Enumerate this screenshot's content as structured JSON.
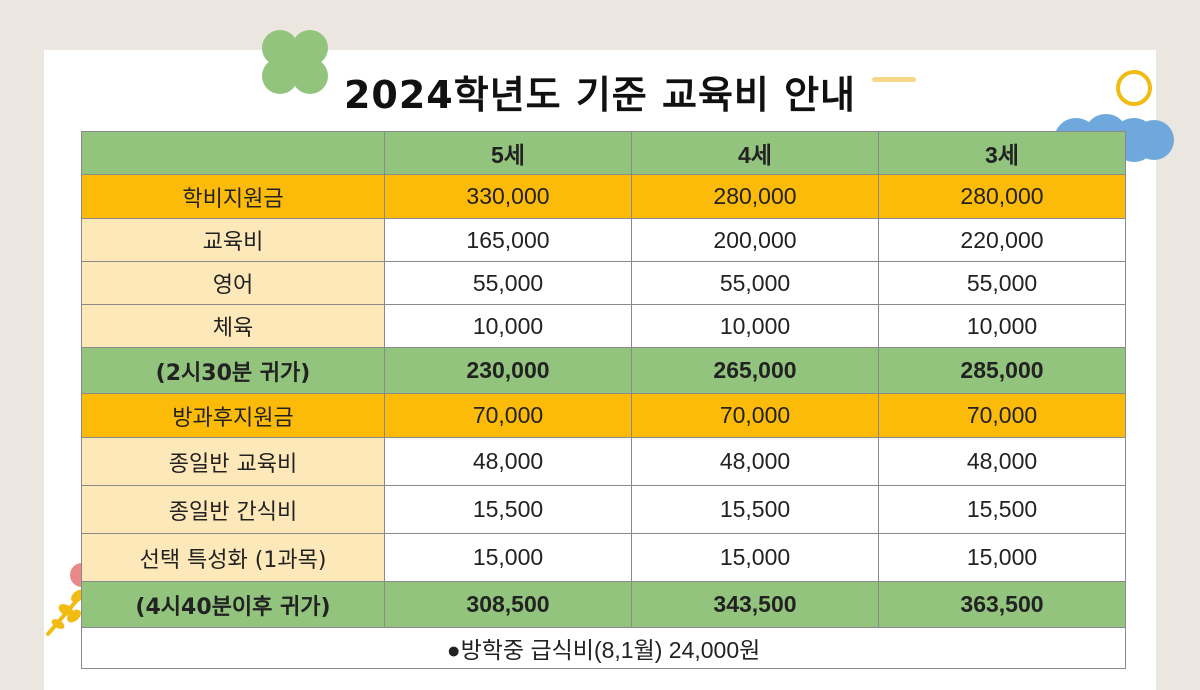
{
  "page": {
    "title": "2024학년도 기준 교육비 안내"
  },
  "colors": {
    "header_green": "#92c47e",
    "support_orange": "#fdbb09",
    "label_cream": "#fde8b9",
    "background": "#ebe7e0"
  },
  "table": {
    "headers": [
      "",
      "5세",
      "4세",
      "3세"
    ],
    "rows": [
      {
        "label": "학비지원금",
        "values": [
          "330,000",
          "280,000",
          "280,000"
        ]
      },
      {
        "label": "교육비",
        "values": [
          "165,000",
          "200,000",
          "220,000"
        ]
      },
      {
        "label": "영어",
        "values": [
          "55,000",
          "55,000",
          "55,000"
        ]
      },
      {
        "label": "체육",
        "values": [
          "10,000",
          "10,000",
          "10,000"
        ]
      },
      {
        "label": "(2시30분 귀가)",
        "values": [
          "230,000",
          "265,000",
          "285,000"
        ]
      },
      {
        "label": "방과후지원금",
        "values": [
          "70,000",
          "70,000",
          "70,000"
        ]
      },
      {
        "label": "종일반 교육비",
        "values": [
          "48,000",
          "48,000",
          "48,000"
        ]
      },
      {
        "label": "종일반 간식비",
        "values": [
          "15,500",
          "15,500",
          "15,500"
        ]
      },
      {
        "label": "선택 특성화 (1과목)",
        "values": [
          "15,000",
          "15,000",
          "15,000"
        ]
      },
      {
        "label": "(4시40분이후 귀가)",
        "values": [
          "308,500",
          "343,500",
          "363,500"
        ]
      }
    ],
    "note": "●방학중 급식비(8,1월) 24,000원"
  }
}
